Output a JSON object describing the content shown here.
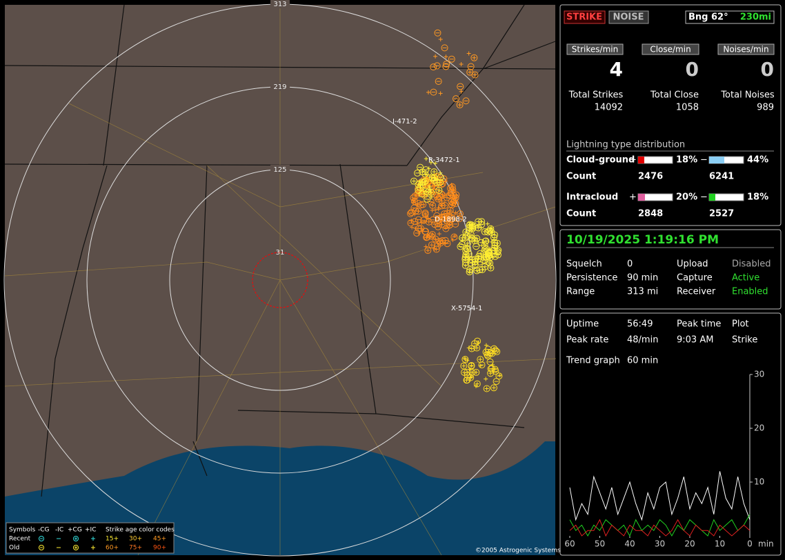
{
  "map": {
    "range_labels": [
      "313",
      "219",
      "125",
      "31"
    ],
    "station_labels": [
      "I-471-2",
      "R-3472-1",
      "D-1898-2",
      "X-5754-1"
    ],
    "copyright": "©2005 Astrogenic Systems",
    "legend": {
      "header": [
        "Symbols",
        "-CG",
        "-IC",
        "+CG",
        "+IC",
        "Strike age color codes"
      ],
      "rows": [
        {
          "label": "Recent",
          "ages": [
            "15+",
            "30+",
            "45+"
          ]
        },
        {
          "label": "Old",
          "ages": [
            "60+",
            "75+",
            "90+"
          ]
        }
      ]
    }
  },
  "status": {
    "buttons": [
      "STRIKE",
      "NOISE"
    ],
    "bearing": "Bng 62°",
    "distance": "230mi"
  },
  "rates": [
    {
      "label": "Strikes/min",
      "value": 4
    },
    {
      "label": "Close/min",
      "value": 0
    },
    {
      "label": "Noises/min",
      "value": 0
    }
  ],
  "totals": [
    {
      "label": "Total Strikes",
      "value": 14092
    },
    {
      "label": "Total Close",
      "value": 1058
    },
    {
      "label": "Total Noises",
      "value": 989
    }
  ],
  "distribution": {
    "title": "Lightning type distribution",
    "plus": "+",
    "minus": "−",
    "count_label": "Count",
    "rows": [
      {
        "label": "Cloud-ground",
        "positive": {
          "value": 18,
          "label": "18%"
        },
        "negative": {
          "value": 44,
          "label": "44%"
        },
        "positive_count": 2476,
        "negative_count": 6241,
        "positive_color": "#e00000",
        "negative_color": "#8ccff5"
      },
      {
        "label": "Intracloud",
        "positive": {
          "value": 20,
          "label": "20%"
        },
        "negative": {
          "value": 18,
          "label": "18%"
        },
        "positive_count": 2848,
        "negative_count": 2527,
        "positive_color": "#e060a0",
        "negative_color": "#20d020"
      }
    ]
  },
  "clock": "10/19/2025 1:19:16 PM",
  "settings": [
    [
      "Squelch",
      "0",
      "Upload",
      "Disabled"
    ],
    [
      "Persistence",
      "90 min",
      "Capture",
      "Active"
    ],
    [
      "Range",
      "313 mi",
      "Receiver",
      "Enabled"
    ]
  ],
  "stats": [
    [
      "Uptime",
      "56:49",
      "Peak time",
      "Plot"
    ],
    [
      "Peak rate",
      "48/min",
      "9:03 AM",
      "Strike"
    ],
    [
      "Trend graph",
      "60 min"
    ]
  ],
  "trend": {
    "type": "line",
    "x_unit": "min",
    "xlim": [
      60,
      0
    ],
    "xticks": [
      60,
      50,
      40,
      30,
      20,
      10,
      0
    ],
    "ylim": [
      0,
      30
    ],
    "yticks": [
      10,
      20,
      30
    ],
    "x": [
      60,
      58,
      56,
      54,
      52,
      50,
      48,
      46,
      44,
      42,
      40,
      38,
      36,
      34,
      32,
      30,
      28,
      26,
      24,
      22,
      20,
      18,
      16,
      14,
      12,
      10,
      8,
      6,
      4,
      2,
      0
    ],
    "series": [
      {
        "color": "#ffffff",
        "values": [
          9,
          3,
          6,
          4,
          11,
          8,
          5,
          9,
          4,
          7,
          10,
          6,
          3,
          8,
          5,
          9,
          10,
          4,
          7,
          11,
          5,
          8,
          6,
          9,
          4,
          12,
          7,
          5,
          11,
          6,
          3
        ]
      },
      {
        "color": "#20d020",
        "values": [
          3,
          1,
          2,
          0,
          2,
          1,
          3,
          2,
          1,
          2,
          0,
          3,
          1,
          2,
          1,
          3,
          2,
          0,
          2,
          1,
          3,
          2,
          1,
          0,
          3,
          1,
          2,
          3,
          1,
          2,
          4
        ]
      },
      {
        "color": "#e02020",
        "values": [
          1,
          2,
          0,
          1,
          1,
          3,
          0,
          2,
          1,
          0,
          2,
          1,
          1,
          0,
          2,
          1,
          0,
          1,
          3,
          1,
          0,
          2,
          1,
          1,
          0,
          2,
          1,
          0,
          1,
          2,
          1
        ]
      }
    ]
  }
}
